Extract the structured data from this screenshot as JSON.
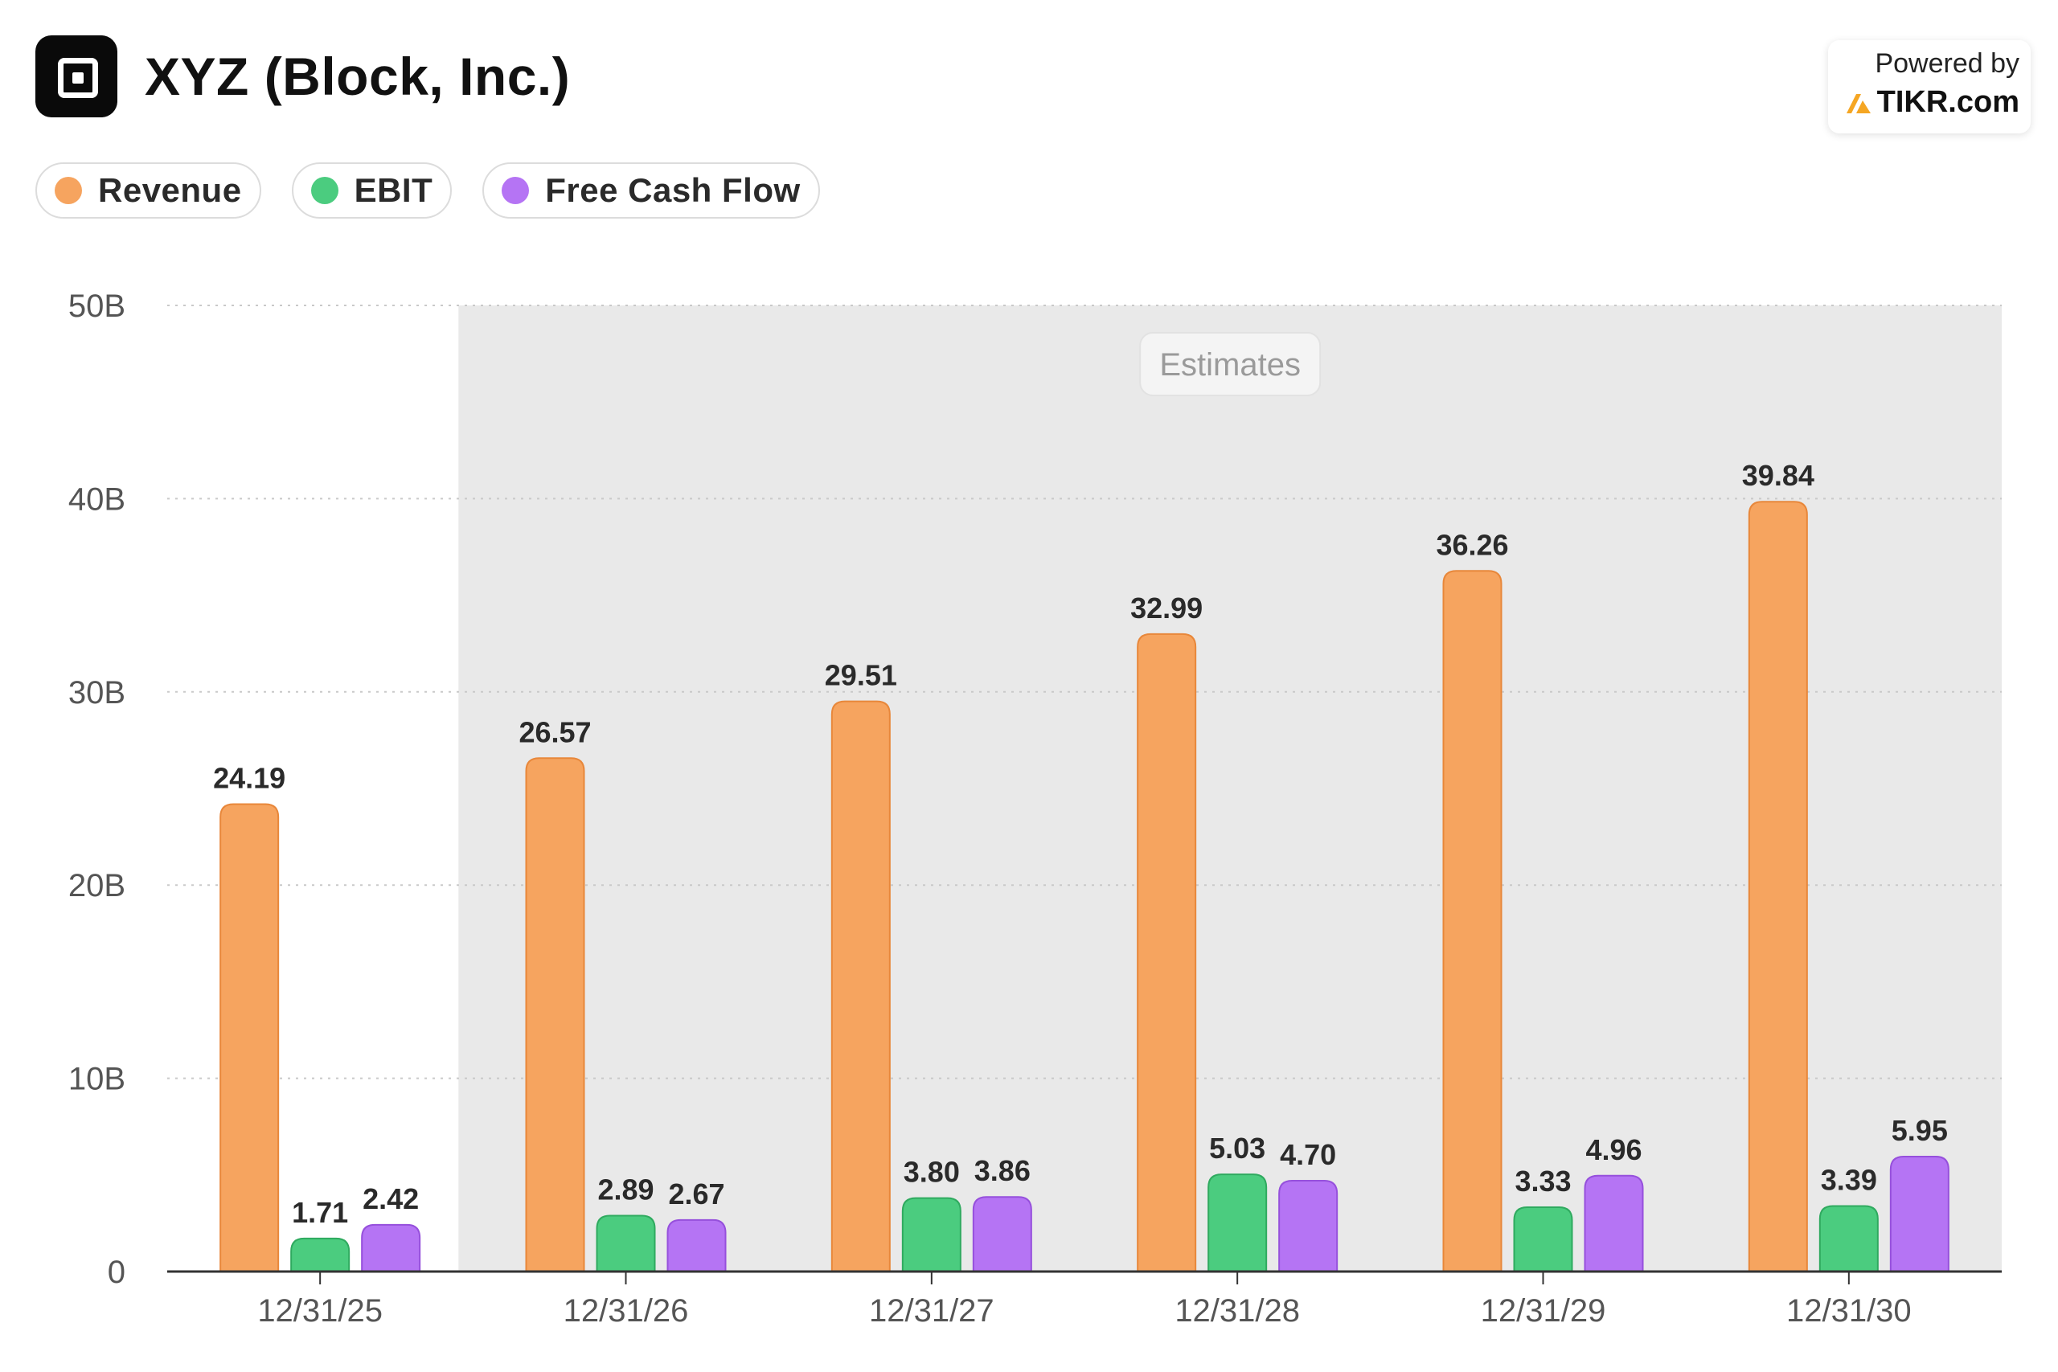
{
  "header": {
    "title": "XYZ (Block, Inc.)",
    "powered_by": "Powered by",
    "brand": "TIKR.com"
  },
  "legend": [
    {
      "label": "Revenue",
      "color": "#f6a45f"
    },
    {
      "label": "EBIT",
      "color": "#4bcc7f"
    },
    {
      "label": "Free Cash Flow",
      "color": "#b574f4"
    }
  ],
  "chart_data": {
    "type": "bar",
    "categories": [
      "12/31/25",
      "12/31/26",
      "12/31/27",
      "12/31/28",
      "12/31/29",
      "12/31/30"
    ],
    "series": [
      {
        "name": "Revenue",
        "color": "#f6a45f",
        "stroke": "#e8873a",
        "values": [
          24.19,
          26.57,
          29.51,
          32.99,
          36.26,
          39.84
        ],
        "labels": [
          "24.19",
          "26.57",
          "29.51",
          "32.99",
          "36.26",
          "39.84"
        ]
      },
      {
        "name": "EBIT",
        "color": "#4bcc7f",
        "stroke": "#2faa5f",
        "values": [
          1.71,
          2.89,
          3.8,
          5.03,
          3.33,
          3.39
        ],
        "labels": [
          "1.71",
          "2.89",
          "3.80",
          "5.03",
          "3.33",
          "3.39"
        ]
      },
      {
        "name": "Free Cash Flow",
        "color": "#b574f4",
        "stroke": "#9650dc",
        "values": [
          2.42,
          2.67,
          3.86,
          4.7,
          4.96,
          5.95
        ],
        "labels": [
          "2.42",
          "2.67",
          "3.86",
          "4.70",
          "4.96",
          "5.95"
        ]
      }
    ],
    "ylim": [
      0,
      50
    ],
    "yticks": [
      0,
      10,
      20,
      30,
      40,
      50
    ],
    "ytick_labels": [
      "0",
      "10B",
      "20B",
      "30B",
      "40B",
      "50B"
    ],
    "estimates_label": "Estimates",
    "estimates_from_index": 1,
    "grid": true
  }
}
